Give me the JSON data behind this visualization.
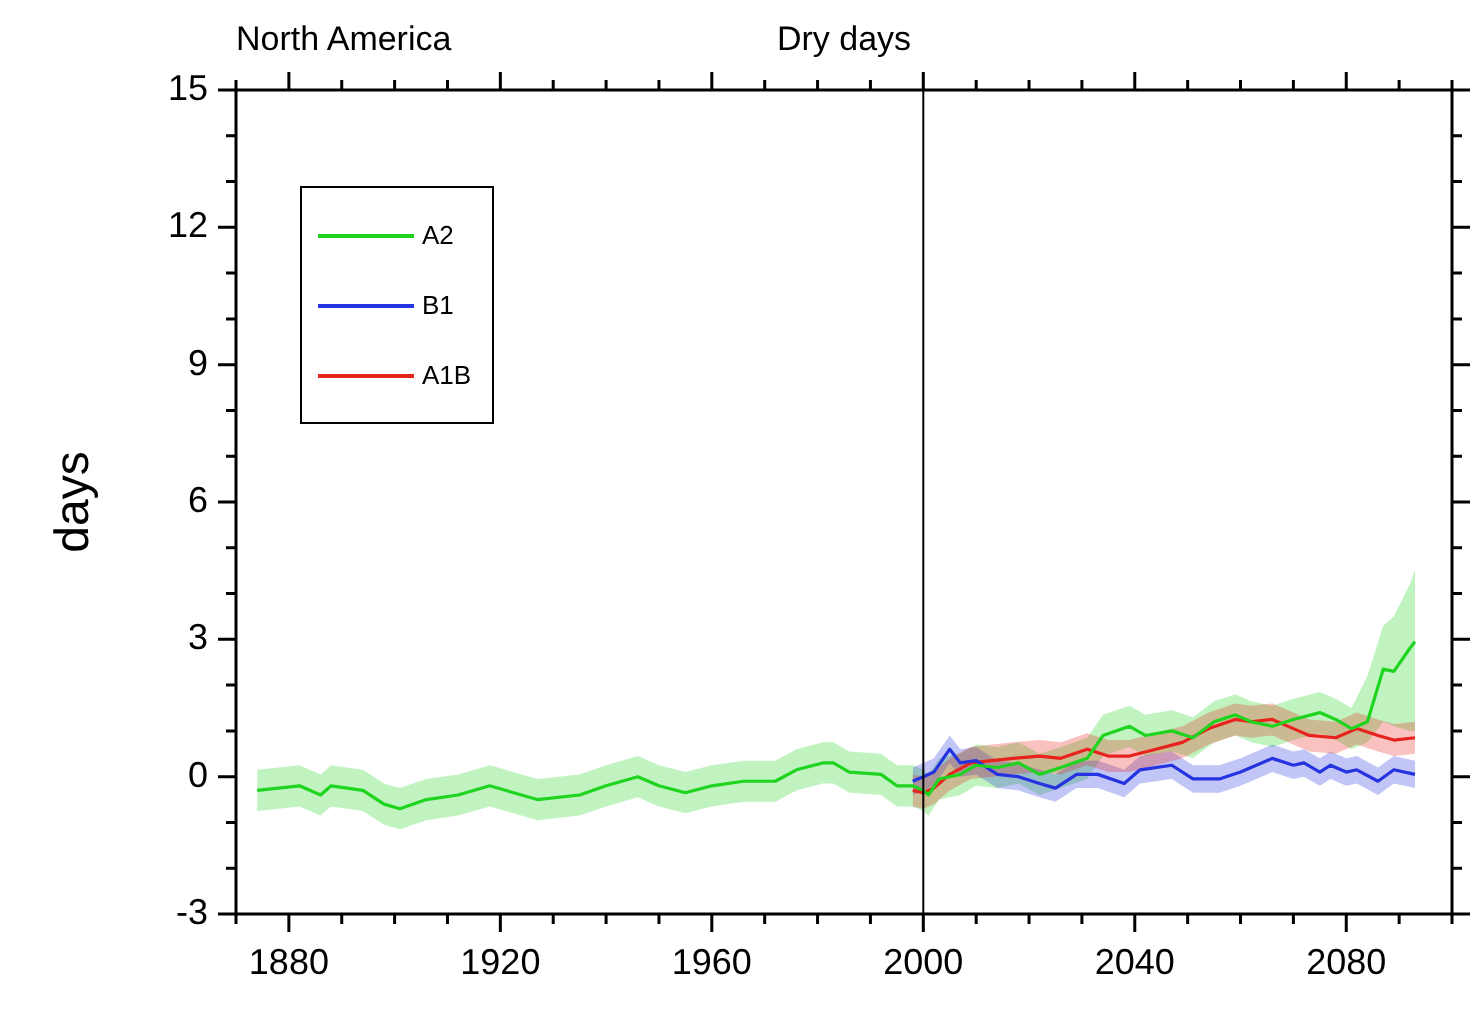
{
  "chart_data": {
    "type": "line",
    "title": "Dry days",
    "ylabel": "days",
    "annotations": [
      "North America"
    ],
    "xlim": [
      1870,
      2100
    ],
    "xticks": [
      {
        "value": 1870,
        "label": null
      },
      1880,
      {
        "value": 1890,
        "label": null
      },
      {
        "value": 1900,
        "label": null
      },
      {
        "value": 1910,
        "label": null
      },
      1920,
      {
        "value": 1930,
        "label": null
      },
      {
        "value": 1940,
        "label": null
      },
      {
        "value": 1950,
        "label": null
      },
      1960,
      {
        "value": 1970,
        "label": null
      },
      {
        "value": 1980,
        "label": null
      },
      {
        "value": 1990,
        "label": null
      },
      2000,
      {
        "value": 2010,
        "label": null
      },
      {
        "value": 2020,
        "label": null
      },
      {
        "value": 2030,
        "label": null
      },
      2040,
      {
        "value": 2050,
        "label": null
      },
      {
        "value": 2060,
        "label": null
      },
      {
        "value": 2070,
        "label": null
      },
      2080,
      {
        "value": 2090,
        "label": null
      },
      {
        "value": 2100,
        "label": null
      }
    ],
    "ylim": [
      -3,
      15
    ],
    "yticks": [
      -3,
      {
        "value": -2,
        "label": null
      },
      {
        "value": -1,
        "label": null
      },
      0,
      {
        "value": 1,
        "label": null
      },
      {
        "value": 2,
        "label": null
      },
      3,
      {
        "value": 4,
        "label": null
      },
      {
        "value": 5,
        "label": null
      },
      6,
      {
        "value": 7,
        "label": null
      },
      {
        "value": 8,
        "label": null
      },
      9,
      {
        "value": 10,
        "label": null
      },
      {
        "value": 11,
        "label": null
      },
      12,
      {
        "value": 13,
        "label": null
      },
      {
        "value": 14,
        "label": null
      },
      15
    ],
    "grid": false,
    "legend": "top left",
    "marker": "none",
    "line_style": "solid",
    "ref_lines": [
      {
        "axis": "x",
        "value": 2000,
        "color": "#000000"
      }
    ],
    "series": [
      {
        "name": "A1B",
        "color": "#e8231e",
        "x": [
          1998,
          2000,
          2002,
          2005,
          2009,
          2013,
          2017,
          2022,
          2026,
          2031,
          2035,
          2039,
          2044,
          2049,
          2054,
          2059,
          2062,
          2066,
          2070,
          2073,
          2078,
          2082,
          2086,
          2089,
          2093
        ],
        "values": [
          -0.3,
          -0.35,
          -0.25,
          0.05,
          0.3,
          0.35,
          0.4,
          0.45,
          0.4,
          0.6,
          0.45,
          0.45,
          0.6,
          0.75,
          1.05,
          1.25,
          1.2,
          1.25,
          1.05,
          0.9,
          0.85,
          1.05,
          0.9,
          0.8,
          0.85
        ],
        "lower": [
          -0.65,
          -0.7,
          -0.6,
          -0.3,
          -0.05,
          0,
          0.05,
          0.1,
          0.05,
          0.25,
          0.1,
          0.1,
          0.25,
          0.4,
          0.7,
          0.9,
          0.85,
          0.9,
          0.7,
          0.55,
          0.5,
          0.7,
          0.55,
          0.45,
          0.5
        ],
        "upper": [
          0.05,
          0,
          0.1,
          0.4,
          0.65,
          0.7,
          0.75,
          0.8,
          0.75,
          0.95,
          0.8,
          0.8,
          0.95,
          1.1,
          1.4,
          1.6,
          1.55,
          1.6,
          1.4,
          1.25,
          1.2,
          1.4,
          1.25,
          1.15,
          1.2
        ]
      },
      {
        "name": "B1",
        "color": "#2533e0",
        "x": [
          1998,
          2000,
          2002,
          2005,
          2007,
          2010,
          2014,
          2018,
          2022,
          2025,
          2029,
          2033,
          2038,
          2041,
          2047,
          2051,
          2056,
          2060,
          2066,
          2070,
          2072,
          2075,
          2077,
          2080,
          2082,
          2086,
          2089,
          2093
        ],
        "values": [
          -0.1,
          0,
          0.1,
          0.6,
          0.3,
          0.35,
          0.05,
          0,
          -0.15,
          -0.25,
          0.05,
          0.05,
          -0.15,
          0.15,
          0.25,
          -0.05,
          -0.05,
          0.1,
          0.4,
          0.25,
          0.3,
          0.1,
          0.25,
          0.1,
          0.15,
          -0.1,
          0.15,
          0.05
        ],
        "lower": [
          -0.4,
          -0.3,
          -0.2,
          0.3,
          0,
          0.05,
          -0.25,
          -0.3,
          -0.45,
          -0.55,
          -0.25,
          -0.25,
          -0.45,
          -0.15,
          -0.05,
          -0.35,
          -0.35,
          -0.2,
          0.1,
          -0.05,
          0,
          -0.2,
          -0.05,
          -0.2,
          -0.15,
          -0.4,
          -0.15,
          -0.25
        ],
        "upper": [
          0.2,
          0.3,
          0.4,
          0.9,
          0.6,
          0.65,
          0.35,
          0.3,
          0.15,
          0.05,
          0.35,
          0.35,
          0.15,
          0.45,
          0.55,
          0.25,
          0.25,
          0.4,
          0.7,
          0.55,
          0.6,
          0.4,
          0.55,
          0.4,
          0.45,
          0.2,
          0.45,
          0.35
        ]
      },
      {
        "name": "A2",
        "color": "#1ed41e",
        "x": [
          1874,
          1882,
          1886,
          1888,
          1894,
          1898,
          1901,
          1906,
          1912,
          1918,
          1924,
          1927,
          1935,
          1940,
          1946,
          1950,
          1955,
          1960,
          1966,
          1972,
          1976,
          1981,
          1983,
          1986,
          1992,
          1995,
          1998,
          2000,
          2001,
          2003,
          2007,
          2010,
          2014,
          2018,
          2022,
          2026,
          2031,
          2034,
          2039,
          2042,
          2047,
          2051,
          2055,
          2059,
          2062,
          2066,
          2070,
          2075,
          2078,
          2081,
          2084,
          2087,
          2089,
          2092,
          2093
        ],
        "values": [
          -0.3,
          -0.2,
          -0.4,
          -0.2,
          -0.3,
          -0.6,
          -0.7,
          -0.5,
          -0.4,
          -0.2,
          -0.4,
          -0.5,
          -0.4,
          -0.2,
          0,
          -0.2,
          -0.35,
          -0.2,
          -0.1,
          -0.1,
          0.15,
          0.3,
          0.3,
          0.1,
          0.05,
          -0.2,
          -0.2,
          -0.3,
          -0.4,
          -0.05,
          0.05,
          0.25,
          0.2,
          0.3,
          0.05,
          0.2,
          0.4,
          0.9,
          1.1,
          0.9,
          1.0,
          0.85,
          1.2,
          1.35,
          1.2,
          1.1,
          1.25,
          1.4,
          1.25,
          1.05,
          1.2,
          2.35,
          2.3,
          2.8,
          2.95
        ],
        "lower": [
          -0.75,
          -0.65,
          -0.85,
          -0.65,
          -0.75,
          -1.05,
          -1.15,
          -0.95,
          -0.85,
          -0.65,
          -0.85,
          -0.95,
          -0.85,
          -0.65,
          -0.45,
          -0.65,
          -0.8,
          -0.65,
          -0.55,
          -0.55,
          -0.3,
          -0.15,
          -0.15,
          -0.35,
          -0.4,
          -0.65,
          -0.65,
          -0.75,
          -0.85,
          -0.5,
          -0.4,
          -0.2,
          -0.25,
          -0.15,
          -0.4,
          -0.25,
          -0.05,
          0.45,
          0.65,
          0.45,
          0.55,
          0.4,
          0.75,
          0.9,
          0.75,
          0.65,
          0.8,
          0.95,
          0.8,
          0.6,
          0.75,
          1.2,
          1.1,
          1.0,
          1.0
        ],
        "upper": [
          0.15,
          0.25,
          0.05,
          0.25,
          0.15,
          -0.15,
          -0.25,
          -0.05,
          0.05,
          0.25,
          0.05,
          -0.05,
          0.05,
          0.25,
          0.45,
          0.25,
          0.1,
          0.25,
          0.35,
          0.35,
          0.6,
          0.75,
          0.75,
          0.55,
          0.5,
          0.25,
          0.25,
          0.15,
          0.05,
          0.4,
          0.5,
          0.7,
          0.65,
          0.75,
          0.5,
          0.65,
          0.85,
          1.35,
          1.55,
          1.35,
          1.45,
          1.3,
          1.65,
          1.8,
          1.65,
          1.55,
          1.7,
          1.85,
          1.7,
          1.5,
          2.2,
          3.3,
          3.5,
          4.2,
          4.5
        ]
      }
    ]
  }
}
